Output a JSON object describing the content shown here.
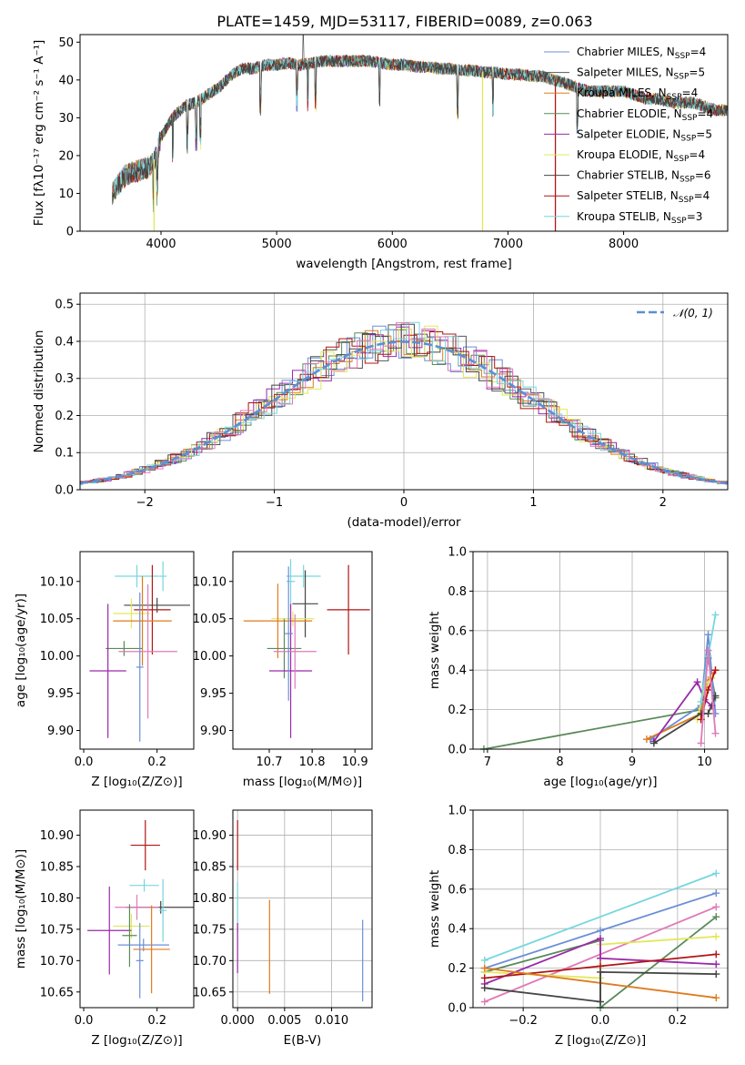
{
  "title": "PLATE=1459, MJD=53117, FIBERID=0089, z=0.063",
  "colors": {
    "chabrier_miles": "#6b8fd6",
    "salpeter_miles": "#555555",
    "kroupa_miles": "#e07b1d",
    "chabrier_elodie": "#5a8a5a",
    "salpeter_elodie": "#9a2aa8",
    "kroupa_elodie": "#e2e85a",
    "chabrier_stelib": "#444444",
    "salpeter_stelib": "#b01515",
    "kroupa_stelib": "#77d6de",
    "extra_pink": "#e07ab8",
    "gauss": "#5b8fd6"
  },
  "chart_data": [
    {
      "id": "spectrum",
      "type": "line",
      "title": "PLATE=1459, MJD=53117, FIBERID=0089, z=0.063",
      "xlabel": "wavelength [Angstrom, rest frame]",
      "ylabel": "Flux [fλ10⁻¹⁷ erg cm⁻² s⁻¹ A⁻¹]",
      "xlim": [
        3300,
        8900
      ],
      "ylim": [
        0,
        52
      ],
      "xticks": [
        "4000",
        "5000",
        "6000",
        "7000",
        "8000"
      ],
      "yticks": [
        "0",
        "10",
        "20",
        "30",
        "40",
        "50"
      ],
      "grid": false,
      "legend_position": "upper-right",
      "legend": [
        {
          "label": "Chabrier MILES, N_SSP=4",
          "text": "Chabrier MILES, N",
          "sub": "SSP",
          "tail": "=4",
          "color": "#6b8fd6"
        },
        {
          "label": "Salpeter MILES, N_SSP=5",
          "text": "Salpeter MILES, N",
          "sub": "SSP",
          "tail": "=5",
          "color": "#555555"
        },
        {
          "label": "Kroupa MILES, N_SSP=4",
          "text": "Kroupa MILES, N",
          "sub": "SSP",
          "tail": "=4",
          "color": "#e07b1d"
        },
        {
          "label": "Chabrier ELODIE, N_SSP=4",
          "text": "Chabrier ELODIE, N",
          "sub": "SSP",
          "tail": "=4",
          "color": "#5a8a5a"
        },
        {
          "label": "Salpeter ELODIE, N_SSP=5",
          "text": "Salpeter ELODIE, N",
          "sub": "SSP",
          "tail": "=5",
          "color": "#9a2aa8"
        },
        {
          "label": "Kroupa ELODIE, N_SSP=4",
          "text": "Kroupa ELODIE, N",
          "sub": "SSP",
          "tail": "=4",
          "color": "#e2e85a"
        },
        {
          "label": "Chabrier STELIB, N_SSP=6",
          "text": "Chabrier STELIB, N",
          "sub": "SSP",
          "tail": "=6",
          "color": "#444444"
        },
        {
          "label": "Salpeter STELIB, N_SSP=4",
          "text": "Salpeter STELIB, N",
          "sub": "SSP",
          "tail": "=4",
          "color": "#b01515"
        },
        {
          "label": "Kroupa STELIB, N_SSP=3",
          "text": "Kroupa STELIB, N",
          "sub": "SSP",
          "tail": "=3",
          "color": "#77d6de"
        }
      ],
      "continuum": [
        [
          3580,
          10
        ],
        [
          3620,
          12
        ],
        [
          3700,
          15
        ],
        [
          3800,
          16
        ],
        [
          3900,
          17
        ],
        [
          3960,
          20
        ],
        [
          4000,
          25
        ],
        [
          4100,
          30
        ],
        [
          4200,
          33
        ],
        [
          4300,
          34
        ],
        [
          4400,
          36
        ],
        [
          4500,
          38
        ],
        [
          4600,
          41
        ],
        [
          4700,
          43
        ],
        [
          4800,
          43
        ],
        [
          4900,
          44
        ],
        [
          5000,
          44
        ],
        [
          5100,
          44.5
        ],
        [
          5200,
          44
        ],
        [
          5300,
          44.5
        ],
        [
          5400,
          45
        ],
        [
          5500,
          45
        ],
        [
          5600,
          45
        ],
        [
          5700,
          45
        ],
        [
          5800,
          45
        ],
        [
          5900,
          44.5
        ],
        [
          6000,
          44
        ],
        [
          6100,
          44
        ],
        [
          6200,
          43.5
        ],
        [
          6300,
          43.5
        ],
        [
          6400,
          43
        ],
        [
          6500,
          43
        ],
        [
          6600,
          42.5
        ],
        [
          6700,
          42.5
        ],
        [
          6800,
          42
        ],
        [
          6900,
          42
        ],
        [
          7000,
          41.5
        ],
        [
          7100,
          41.5
        ],
        [
          7200,
          41
        ],
        [
          7300,
          41
        ],
        [
          7400,
          40
        ],
        [
          7500,
          39
        ],
        [
          7600,
          38
        ],
        [
          7700,
          37
        ],
        [
          7800,
          37
        ],
        [
          7900,
          37
        ],
        [
          8000,
          37
        ],
        [
          8100,
          36
        ],
        [
          8200,
          35
        ],
        [
          8300,
          35
        ],
        [
          8400,
          34
        ],
        [
          8500,
          34
        ],
        [
          8600,
          34
        ],
        [
          8700,
          33
        ],
        [
          8800,
          32
        ],
        [
          8900,
          32
        ]
      ]
    },
    {
      "id": "residuals",
      "type": "histogram",
      "xlabel": "(data-model)/error",
      "ylabel": "Normed distribution",
      "xlim": [
        -2.5,
        2.5
      ],
      "ylim": [
        0,
        0.53
      ],
      "xticks": [
        "−2",
        "−1",
        "0",
        "1",
        "2"
      ],
      "yticks": [
        "0.0",
        "0.1",
        "0.2",
        "0.3",
        "0.4",
        "0.5"
      ],
      "grid": true,
      "legend_position": "upper-right",
      "legend": [
        {
          "label": "𝒩(0, 1)",
          "color": "#5b8fd6"
        }
      ]
    },
    {
      "id": "age_vs_Z",
      "type": "errorbar",
      "xlabel": "Z [log₁₀(Z/Z⊙)]",
      "ylabel": "age  [log₁₀(age/yr)]",
      "xlim": [
        -0.01,
        0.3
      ],
      "ylim": [
        9.875,
        10.14
      ],
      "xticks": [
        "0.0",
        "0.2"
      ],
      "yticks": [
        "9.90",
        "9.95",
        "10.00",
        "10.05",
        "10.10"
      ],
      "points": [
        {
          "x": 0.145,
          "y": 10.107,
          "xerr": 0.06,
          "yerr": 0.015,
          "color": "#77d6de"
        },
        {
          "x": 0.216,
          "y": 10.107,
          "xerr": 0.01,
          "yerr": 0.02,
          "color": "#77d6de"
        },
        {
          "x": 0.187,
          "y": 10.062,
          "xerr": 0.05,
          "yerr": 0.06,
          "color": "#b01515"
        },
        {
          "x": 0.2,
          "y": 10.068,
          "xerr": 0.09,
          "yerr": 0.01,
          "color": "#444444"
        },
        {
          "x": 0.13,
          "y": 10.057,
          "xerr": 0.05,
          "yerr": 0.02,
          "color": "#e2e85a"
        },
        {
          "x": 0.16,
          "y": 10.047,
          "xerr": 0.08,
          "yerr": 0.06,
          "color": "#e07b1d"
        },
        {
          "x": 0.11,
          "y": 10.01,
          "xerr": 0.05,
          "yerr": 0.01,
          "color": "#5a8a5a"
        },
        {
          "x": 0.066,
          "y": 9.98,
          "xerr": 0.05,
          "yerr": 0.09,
          "color": "#9a2aa8"
        },
        {
          "x": 0.175,
          "y": 10.006,
          "xerr": 0.08,
          "yerr": 0.09,
          "color": "#e07ab8"
        },
        {
          "x": 0.153,
          "y": 9.985,
          "xerr": 0.01,
          "yerr": 0.1,
          "color": "#6b8fd6"
        }
      ]
    },
    {
      "id": "age_vs_mass",
      "type": "errorbar",
      "xlabel": "mass [log₁₀(M/M⊙)]",
      "ylabel": "",
      "xlim": [
        10.615,
        10.94
      ],
      "ylim": [
        9.875,
        10.14
      ],
      "xticks": [
        "10.7",
        "10.8",
        "10.9"
      ],
      "yticks": [
        "9.90",
        "9.95",
        "10.00",
        "10.05",
        "10.10"
      ],
      "points": [
        {
          "x": 10.78,
          "y": 10.107,
          "xerr": 0.04,
          "yerr": 0.015,
          "color": "#77d6de"
        },
        {
          "x": 10.75,
          "y": 10.1,
          "xerr": 0.01,
          "yerr": 0.03,
          "color": "#77d6de"
        },
        {
          "x": 10.885,
          "y": 10.062,
          "xerr": 0.05,
          "yerr": 0.06,
          "color": "#b01515"
        },
        {
          "x": 10.784,
          "y": 10.07,
          "xerr": 0.03,
          "yerr": 0.045,
          "color": "#444444"
        },
        {
          "x": 10.755,
          "y": 10.05,
          "xerr": 0.05,
          "yerr": 0.01,
          "color": "#e2e85a"
        },
        {
          "x": 10.72,
          "y": 10.047,
          "xerr": 0.08,
          "yerr": 0.05,
          "color": "#e07b1d"
        },
        {
          "x": 10.735,
          "y": 10.01,
          "xerr": 0.04,
          "yerr": 0.04,
          "color": "#5a8a5a"
        },
        {
          "x": 10.75,
          "y": 9.98,
          "xerr": 0.05,
          "yerr": 0.09,
          "color": "#9a2aa8"
        },
        {
          "x": 10.76,
          "y": 10.006,
          "xerr": 0.05,
          "yerr": 0.05,
          "color": "#e07ab8"
        },
        {
          "x": 10.745,
          "y": 10.03,
          "xerr": 0.01,
          "yerr": 0.09,
          "color": "#6b8fd6"
        }
      ]
    },
    {
      "id": "weight_vs_age",
      "type": "line",
      "xlabel": "age  [log₁₀(age/yr)]",
      "ylabel": "mass weight",
      "xlim": [
        6.8,
        10.32
      ],
      "ylim": [
        0,
        1.0
      ],
      "xticks": [
        "7",
        "8",
        "9",
        "10"
      ],
      "yticks": [
        "0.0",
        "0.2",
        "0.4",
        "0.6",
        "0.8",
        "1.0"
      ],
      "grid": true,
      "series": [
        {
          "color": "#5a8a5a",
          "x": [
            6.95,
            9.95,
            10.05,
            10.15
          ],
          "y": [
            0.0,
            0.2,
            0.46,
            0.26
          ]
        },
        {
          "color": "#6b8fd6",
          "x": [
            9.25,
            9.95,
            10.05,
            10.15
          ],
          "y": [
            0.05,
            0.22,
            0.58,
            0.18
          ]
        },
        {
          "color": "#e07b1d",
          "x": [
            9.2,
            9.95,
            10.05,
            10.15
          ],
          "y": [
            0.05,
            0.18,
            0.35,
            0.4
          ]
        },
        {
          "color": "#9a2aa8",
          "x": [
            9.3,
            9.9,
            10.0,
            10.1
          ],
          "y": [
            0.04,
            0.34,
            0.25,
            0.22
          ]
        },
        {
          "color": "#e2e85a",
          "x": [
            9.9,
            10.0,
            10.1
          ],
          "y": [
            0.15,
            0.32,
            0.36
          ]
        },
        {
          "color": "#444444",
          "x": [
            9.3,
            9.95,
            10.05,
            10.15
          ],
          "y": [
            0.03,
            0.18,
            0.18,
            0.27
          ]
        },
        {
          "color": "#b01515",
          "x": [
            9.95,
            10.05,
            10.15
          ],
          "y": [
            0.15,
            0.3,
            0.4
          ]
        },
        {
          "color": "#77d6de",
          "x": [
            9.95,
            10.05,
            10.15
          ],
          "y": [
            0.24,
            0.47,
            0.68
          ]
        },
        {
          "color": "#e07ab8",
          "x": [
            9.95,
            10.05,
            10.15
          ],
          "y": [
            0.03,
            0.5,
            0.08
          ]
        }
      ]
    },
    {
      "id": "mass_vs_Z",
      "type": "errorbar",
      "xlabel": "Z [log₁₀(Z/Z⊙)]",
      "ylabel": "mass [log₁₀(M/M⊙)]",
      "xlim": [
        -0.01,
        0.3
      ],
      "ylim": [
        10.625,
        10.94
      ],
      "xticks": [
        "0.0",
        "0.2"
      ],
      "yticks": [
        "10.65",
        "10.70",
        "10.75",
        "10.80",
        "10.85",
        "10.90"
      ],
      "points": [
        {
          "x": 0.168,
          "y": 10.884,
          "xerr": 0.04,
          "yerr": 0.04,
          "color": "#b01515"
        },
        {
          "x": 0.165,
          "y": 10.82,
          "xerr": 0.04,
          "yerr": 0.01,
          "color": "#77d6de"
        },
        {
          "x": 0.21,
          "y": 10.785,
          "xerr": 0.095,
          "yerr": 0.01,
          "color": "#444444"
        },
        {
          "x": 0.145,
          "y": 10.785,
          "xerr": 0.06,
          "yerr": 0.02,
          "color": "#e07ab8"
        },
        {
          "x": 0.216,
          "y": 10.78,
          "xerr": 0.01,
          "yerr": 0.05,
          "color": "#77d6de"
        },
        {
          "x": 0.13,
          "y": 10.755,
          "xerr": 0.05,
          "yerr": 0.02,
          "color": "#e2e85a"
        },
        {
          "x": 0.07,
          "y": 10.748,
          "xerr": 0.06,
          "yerr": 0.07,
          "color": "#9a2aa8"
        },
        {
          "x": 0.125,
          "y": 10.74,
          "xerr": 0.02,
          "yerr": 0.05,
          "color": "#5a8a5a"
        },
        {
          "x": 0.163,
          "y": 10.725,
          "xerr": 0.07,
          "yerr": 0.01,
          "color": "#6b8fd6"
        },
        {
          "x": 0.185,
          "y": 10.718,
          "xerr": 0.05,
          "yerr": 0.07,
          "color": "#e07b1d"
        },
        {
          "x": 0.153,
          "y": 10.7,
          "xerr": 0.01,
          "yerr": 0.06,
          "color": "#6b8fd6"
        }
      ]
    },
    {
      "id": "mass_vs_ebv",
      "type": "errorbar",
      "xlabel": "E(B-V)",
      "ylabel": "",
      "xlim": [
        -0.0005,
        0.0143
      ],
      "ylim": [
        10.625,
        10.94
      ],
      "xticks": [
        "0.000",
        "0.005",
        "0.010"
      ],
      "yticks": [
        "10.65",
        "10.70",
        "10.75",
        "10.80",
        "10.85",
        "10.90"
      ],
      "grid": true,
      "points": [
        {
          "x": 0.0,
          "y": 10.884,
          "xerr": 0,
          "yerr": 0.04,
          "color": "#b01515"
        },
        {
          "x": 0.0,
          "y": 10.785,
          "xerr": 0,
          "yerr": 0.04,
          "color": "#77d6de"
        },
        {
          "x": 0.0,
          "y": 10.72,
          "xerr": 0,
          "yerr": 0.04,
          "color": "#9a2aa8"
        },
        {
          "x": 0.0034,
          "y": 10.722,
          "xerr": 0,
          "yerr": 0.075,
          "color": "#e07b1d"
        },
        {
          "x": 0.0133,
          "y": 10.7,
          "xerr": 0,
          "yerr": 0.065,
          "color": "#6b8fd6"
        }
      ]
    },
    {
      "id": "weight_vs_Z",
      "type": "line",
      "xlabel": "Z [log₁₀(Z/Z⊙)]",
      "ylabel": "mass weight",
      "xlim": [
        -0.33,
        0.33
      ],
      "ylim": [
        0,
        1.0
      ],
      "xticks": [
        "−0.2",
        "0.0",
        "0.2"
      ],
      "yticks": [
        "0.0",
        "0.2",
        "0.4",
        "0.6",
        "0.8",
        "1.0"
      ],
      "grid": true,
      "series": [
        {
          "color": "#77d6de",
          "x": [
            -0.3,
            0.3
          ],
          "y": [
            0.24,
            0.68
          ]
        },
        {
          "color": "#6b8fd6",
          "x": [
            -0.3,
            0.0,
            0.3
          ],
          "y": [
            0.2,
            0.39,
            0.58
          ]
        },
        {
          "color": "#e07ab8",
          "x": [
            -0.3,
            0.3
          ],
          "y": [
            0.03,
            0.51
          ]
        },
        {
          "color": "#5a8a5a",
          "x": [
            -0.3,
            0.0,
            0.0,
            0.3
          ],
          "y": [
            0.18,
            0.34,
            0.0,
            0.46
          ]
        },
        {
          "color": "#e2e85a",
          "x": [
            -0.3,
            0.0,
            0.0,
            0.3
          ],
          "y": [
            0.18,
            0.15,
            0.32,
            0.36
          ]
        },
        {
          "color": "#9a2aa8",
          "x": [
            -0.3,
            0.0,
            0.0,
            0.3
          ],
          "y": [
            0.12,
            0.35,
            0.25,
            0.22
          ]
        },
        {
          "color": "#b01515",
          "x": [
            -0.3,
            0.0,
            0.3
          ],
          "y": [
            0.15,
            0.21,
            0.27
          ]
        },
        {
          "color": "#e07b1d",
          "x": [
            -0.3,
            0.3
          ],
          "y": [
            0.2,
            0.05
          ]
        },
        {
          "color": "#444444",
          "x": [
            -0.3,
            0.0,
            0.0,
            0.3
          ],
          "y": [
            0.1,
            0.03,
            0.18,
            0.17
          ]
        }
      ]
    }
  ]
}
